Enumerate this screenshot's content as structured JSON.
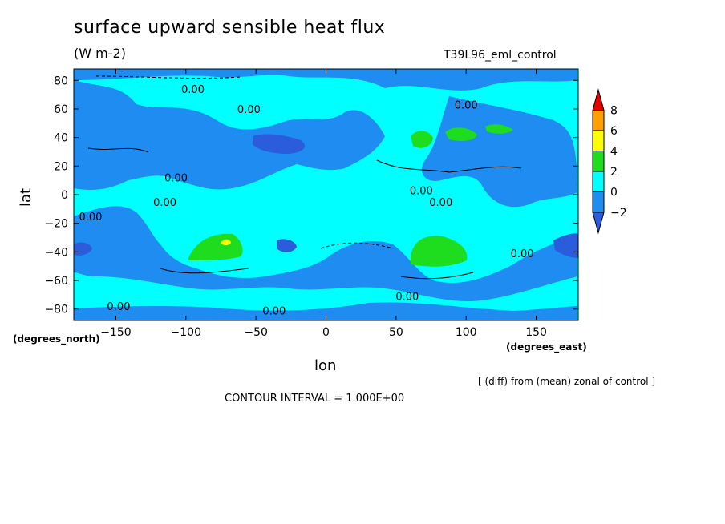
{
  "chart_data": {
    "type": "heatmap",
    "title": "surface upward sensible heat flux",
    "units": "(W m-2)",
    "run_label": "T39L96_eml_control",
    "xlabel": "lon",
    "ylabel": "lat",
    "x_units": "(degrees_east)",
    "y_units": "(degrees_north)",
    "xlim": [
      -180,
      180
    ],
    "ylim": [
      -88,
      88
    ],
    "x_ticks": [
      -150,
      -100,
      -50,
      0,
      50,
      100,
      150
    ],
    "y_ticks": [
      80,
      60,
      40,
      20,
      0,
      -20,
      -40,
      -60,
      -80
    ],
    "colorbar": {
      "labels": [
        "8",
        "6",
        "4",
        "2",
        "0",
        "−2"
      ],
      "levels": [
        8,
        6,
        4,
        2,
        0,
        -2
      ],
      "colors": [
        "#e80000",
        "#ff9f00",
        "#ffff00",
        "#1edc1e",
        "#00ffff",
        "#1e8cf0",
        "#2a5cdc"
      ]
    },
    "contour_labels": [
      {
        "text": "0.00",
        "lon": -95,
        "lat": 74
      },
      {
        "text": "0.00",
        "lon": -55,
        "lat": 60
      },
      {
        "text": "0.00",
        "lon": 100,
        "lat": 63
      },
      {
        "text": "0.00",
        "lon": -107,
        "lat": 12
      },
      {
        "text": "0.00",
        "lon": -115,
        "lat": -5
      },
      {
        "text": "0.00",
        "lon": -168,
        "lat": -15
      },
      {
        "text": "0.00",
        "lon": 68,
        "lat": 3
      },
      {
        "text": "0.00",
        "lon": 82,
        "lat": -5
      },
      {
        "text": "0.00",
        "lon": 140,
        "lat": -41
      },
      {
        "text": "0.00",
        "lon": 58,
        "lat": -71
      },
      {
        "text": "0.00",
        "lon": -148,
        "lat": -78
      },
      {
        "text": "0.00",
        "lon": -37,
        "lat": -81
      }
    ],
    "regions": [
      {
        "level": 2,
        "lon": 68,
        "lat": 38
      },
      {
        "level": 2,
        "lon": 98,
        "lat": 41
      },
      {
        "level": 2,
        "lon": 125,
        "lat": 45
      },
      {
        "level": 2,
        "lon": -75,
        "lat": -42
      },
      {
        "level": 2,
        "lon": 75,
        "lat": -40
      },
      {
        "level": 4,
        "lon": -74,
        "lat": -34
      },
      {
        "level": -2,
        "lon": -30,
        "lat": 36
      },
      {
        "level": -2,
        "lon": 172,
        "lat": -36
      },
      {
        "level": -2,
        "lon": -175,
        "lat": -38
      },
      {
        "level": -2,
        "lon": -30,
        "lat": -37
      }
    ],
    "note": "[ (diff) from (mean) zonal of control ]",
    "contour_interval": "CONTOUR INTERVAL = 1.000E+00"
  }
}
